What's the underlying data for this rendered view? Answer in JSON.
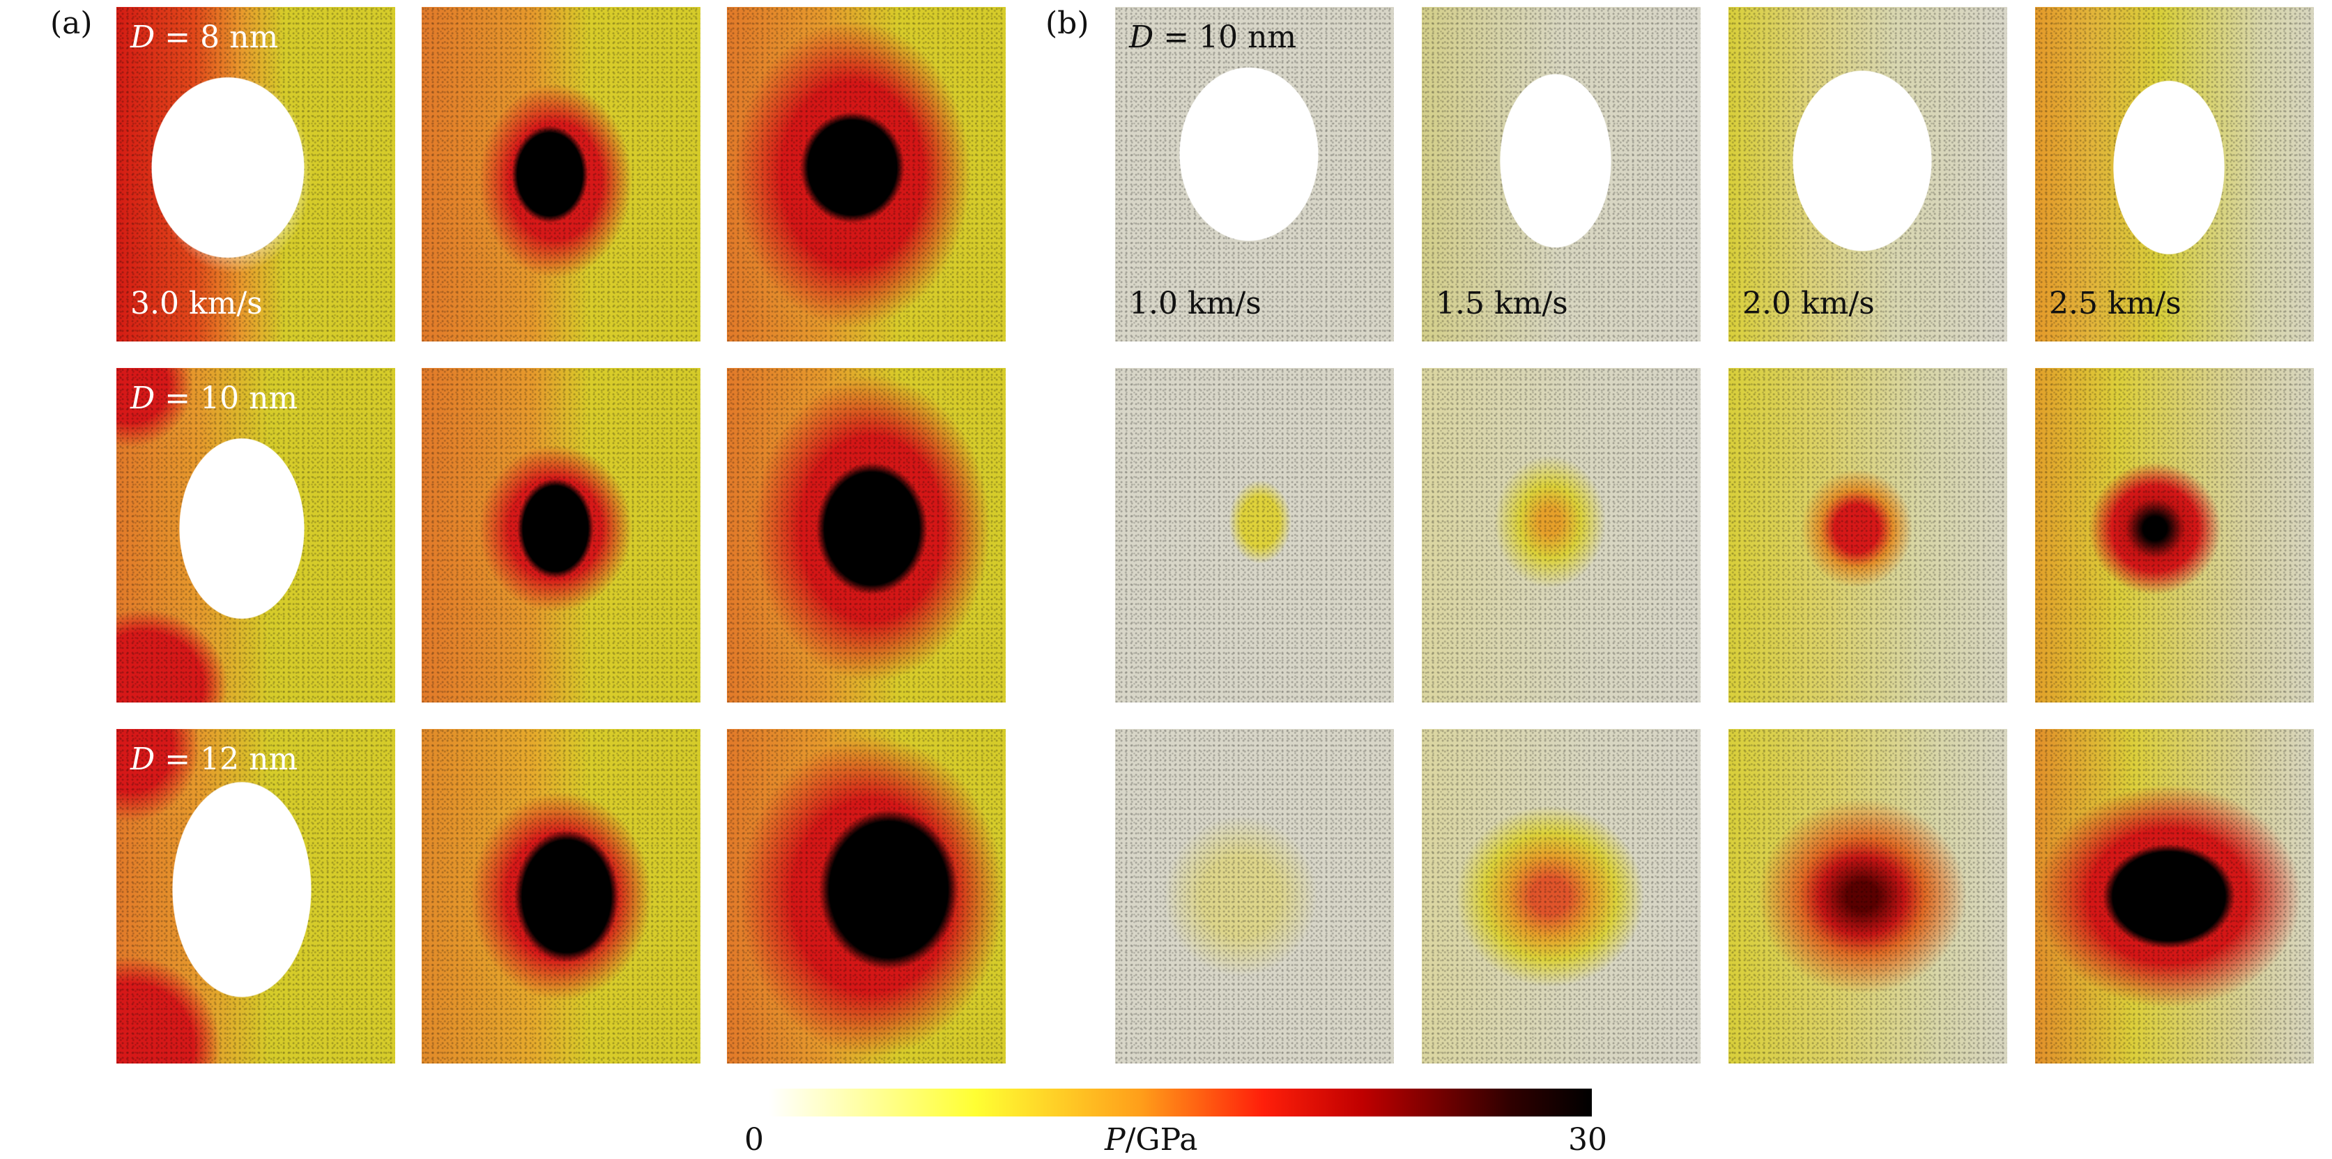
{
  "panel_labels": {
    "a": "(a)",
    "b": "(b)"
  },
  "panel_a": {
    "rows": [
      {
        "label_italic": "D",
        "label_rest": " = 8 nm",
        "speed": "3.0 km/s"
      },
      {
        "label_italic": "D",
        "label_rest": " = 10 nm",
        "speed": ""
      },
      {
        "label_italic": "D",
        "label_rest": " = 12 nm",
        "speed": ""
      }
    ]
  },
  "panel_b": {
    "label_italic": "D",
    "label_rest": " = 10 nm",
    "speeds": [
      "1.0 km/s",
      "1.5 km/s",
      "2.0 km/s",
      "2.5 km/s"
    ]
  },
  "colorbar": {
    "min_label": "0",
    "max_label": "30",
    "unit_label": "/GPa",
    "unit_symbol": "P"
  },
  "colors": {
    "yellow": "#d9cf2a",
    "orange": "#e79a2a",
    "red": "#d61818",
    "black": "#000000",
    "white": "#ffffff",
    "grey": "#d8d6c8"
  }
}
